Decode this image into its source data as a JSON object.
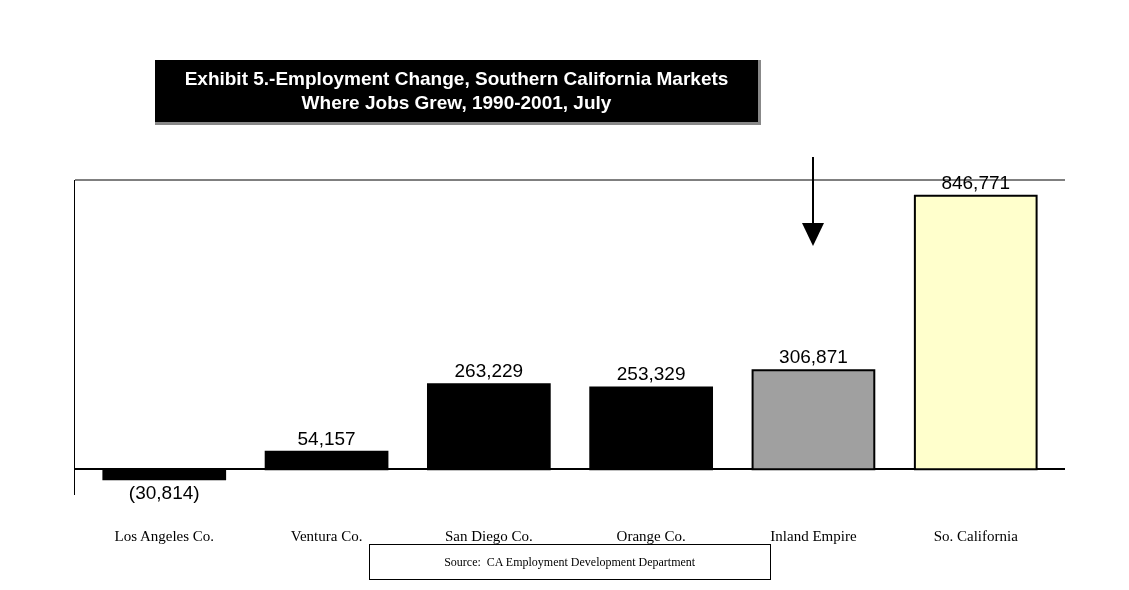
{
  "chart_data": {
    "type": "bar",
    "title": "Exhibit 5.-Employment Change, Southern California Markets\nWhere Jobs Grew, 1990-2001, July",
    "categories": [
      "Los Angeles Co.",
      "Ventura Co.",
      "San Diego Co.",
      "Orange Co.",
      "Inland Empire",
      "So. California"
    ],
    "values": [
      -30814,
      54157,
      263229,
      253329,
      306871,
      846771
    ],
    "colors": [
      "#000000",
      "#000000",
      "#000000",
      "#000000",
      "#a0a0a0",
      "#ffffcc"
    ],
    "value_labels": [
      "(30,814)",
      "54,157",
      "263,229",
      "253,329",
      "306,871",
      "846,771"
    ],
    "tick_labels": "x",
    "grid": false,
    "legend": false,
    "annotations": [
      "Source:  CA Employment Development Department"
    ]
  }
}
